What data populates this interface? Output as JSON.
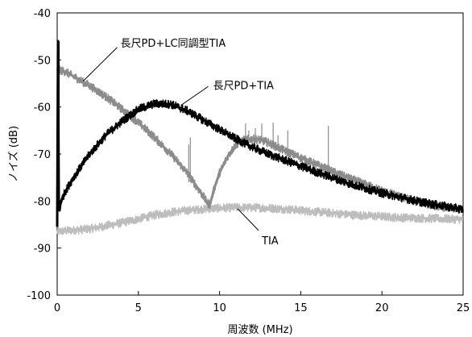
{
  "chart_data": {
    "type": "line",
    "title": "",
    "xlabel": "周波数 (MHz)",
    "ylabel": "ノイズ (dB)",
    "xlim": [
      0,
      25
    ],
    "ylim": [
      -100,
      -40
    ],
    "xticks": [
      0,
      5,
      10,
      15,
      20,
      25
    ],
    "yticks": [
      -40,
      -50,
      -60,
      -70,
      -80,
      -90,
      -100
    ],
    "grid": false,
    "legend": "none",
    "annotations": [
      {
        "text": "長尺PD+LC同調型TIA",
        "target": [
          1.6,
          -54.5
        ],
        "label_at": [
          3.3,
          -46.3
        ]
      },
      {
        "text": "長尺PD+TIA",
        "target": [
          7.6,
          -59.7
        ],
        "label_at": [
          9.6,
          -55.3
        ]
      },
      {
        "text": "TIA",
        "target": [
          11.1,
          -81.6
        ],
        "label_at": [
          12.6,
          -88.3
        ]
      }
    ],
    "series": [
      {
        "name": "長尺PD+LC同調型TIA",
        "color": "#8c8c8c",
        "x": [
          0,
          0.5,
          1,
          2,
          3,
          4,
          5,
          6,
          7,
          8,
          8.5,
          9,
          9.2,
          9.4,
          9.7,
          10,
          10.5,
          11,
          11.5,
          12,
          12.5,
          13,
          14,
          15,
          16,
          17,
          18,
          19,
          20,
          21,
          22,
          23,
          24,
          25
        ],
        "y": [
          -52,
          -52.5,
          -53.5,
          -55.5,
          -57.8,
          -60.5,
          -63.3,
          -66.5,
          -70,
          -74,
          -76.5,
          -79,
          -80.2,
          -80.8,
          -77,
          -74,
          -70.5,
          -68,
          -67,
          -66.8,
          -67,
          -67.6,
          -69.3,
          -70.8,
          -72.3,
          -73.8,
          -75.2,
          -76.5,
          -77.8,
          -79,
          -80,
          -80.8,
          -81.4,
          -81.9
        ]
      },
      {
        "name": "長尺PD+TIA",
        "color": "#000000",
        "x": [
          0,
          0.05,
          0.1,
          0.15,
          0.2,
          0.3,
          0.5,
          1,
          1.5,
          2,
          3,
          4,
          5,
          6,
          7,
          8,
          9,
          10,
          11,
          12,
          13,
          14,
          15,
          16,
          17,
          18,
          19,
          20,
          21,
          22,
          23,
          24,
          25
        ],
        "y": [
          -85.5,
          -46,
          -80,
          -82,
          -80.5,
          -79.5,
          -78,
          -75,
          -72.5,
          -70,
          -66,
          -63,
          -60.5,
          -59.3,
          -59.4,
          -60.8,
          -62.8,
          -64.8,
          -66.8,
          -68.5,
          -70,
          -71.3,
          -72.6,
          -73.9,
          -75.1,
          -76.3,
          -77.3,
          -78.3,
          -79.1,
          -79.9,
          -80.6,
          -81.2,
          -81.8
        ]
      },
      {
        "name": "TIA",
        "color": "#bdbdbd",
        "x": [
          0,
          1,
          2,
          3,
          4,
          5,
          6,
          7,
          8,
          9,
          10,
          11,
          12,
          13,
          14,
          15,
          16,
          17,
          18,
          19,
          20,
          21,
          22,
          23,
          24,
          25
        ],
        "y": [
          -86.5,
          -86.2,
          -85.9,
          -85.3,
          -84.6,
          -83.8,
          -83,
          -82.4,
          -82,
          -81.7,
          -81.5,
          -81.4,
          -81.4,
          -81.5,
          -81.7,
          -82,
          -82.3,
          -82.6,
          -82.9,
          -83.1,
          -83.3,
          -83.5,
          -83.6,
          -83.7,
          -83.8,
          -83.9
        ]
      }
    ],
    "spikes": [
      {
        "x": 0.12,
        "y_top": -46,
        "y_base": -70
      },
      {
        "x": 8.1,
        "y_top": -68,
        "y_base": -76
      },
      {
        "x": 8.2,
        "y_top": -66.5,
        "y_base": -75
      },
      {
        "x": 11.6,
        "y_top": -63.5,
        "y_base": -67
      },
      {
        "x": 11.8,
        "y_top": -65,
        "y_base": -67
      },
      {
        "x": 12.2,
        "y_top": -64.5,
        "y_base": -67
      },
      {
        "x": 12.6,
        "y_top": -63.5,
        "y_base": -67.3
      },
      {
        "x": 13.3,
        "y_top": -63.3,
        "y_base": -68
      },
      {
        "x": 13.6,
        "y_top": -66,
        "y_base": -68.3
      },
      {
        "x": 14.2,
        "y_top": -65,
        "y_base": -69.5
      },
      {
        "x": 16.7,
        "y_top": -64,
        "y_base": -72.5
      }
    ]
  }
}
